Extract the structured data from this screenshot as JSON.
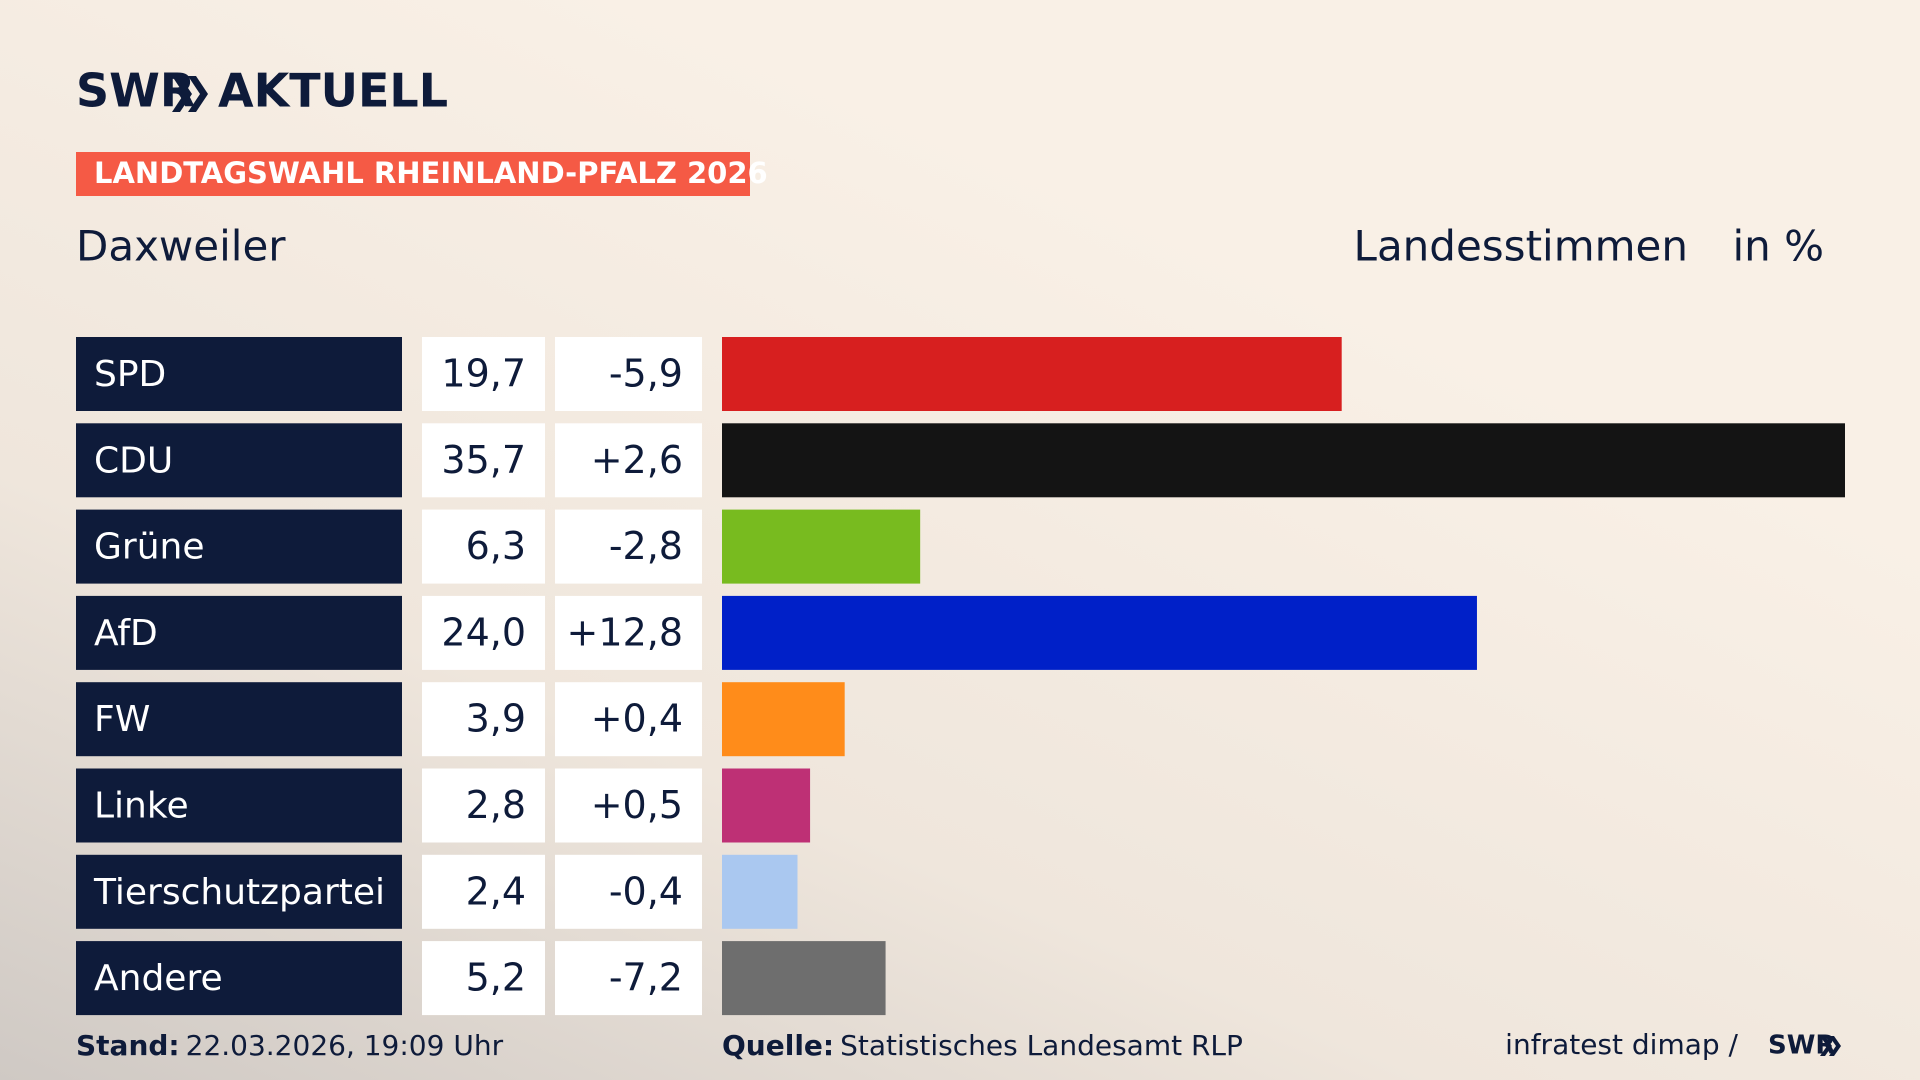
{
  "chart_data": {
    "type": "bar",
    "brand": "SWR",
    "brand_suffix": "AKTUELL",
    "title": "LANDTAGSWAHL RHEINLAND-PFALZ 2026",
    "subtitle": "Daxweiler",
    "measure": "Landesstimmen",
    "unit": "in %",
    "categories": [
      "SPD",
      "CDU",
      "Grüne",
      "AfD",
      "FW",
      "Linke",
      "Tierschutzpartei",
      "Andere"
    ],
    "values": [
      19.7,
      35.7,
      6.3,
      24.0,
      3.9,
      2.8,
      2.4,
      5.2
    ],
    "value_labels": [
      "19,7",
      "35,7",
      "6,3",
      "24,0",
      "3,9",
      "2,8",
      "2,4",
      "5,2"
    ],
    "changes": [
      -5.9,
      2.6,
      -2.8,
      12.8,
      0.4,
      0.5,
      -0.4,
      -7.2
    ],
    "change_labels": [
      "-5,9",
      "+2,6",
      "-2,8",
      "+12,8",
      "+0,4",
      "+0,5",
      "-0,4",
      "-7,2"
    ],
    "colors": [
      "#d71f1f",
      "#141414",
      "#78bb1f",
      "#0020c8",
      "#ff8c1a",
      "#be3075",
      "#aac8f0",
      "#6e6e6e"
    ],
    "footer": {
      "stand_label": "Stand:",
      "stand": "22.03.2026, 19:09 Uhr",
      "source_label": "Quelle:",
      "source": "Statistisches Landesamt RLP",
      "credit": "infratest dimap /",
      "credit_brand": "SWR"
    }
  }
}
